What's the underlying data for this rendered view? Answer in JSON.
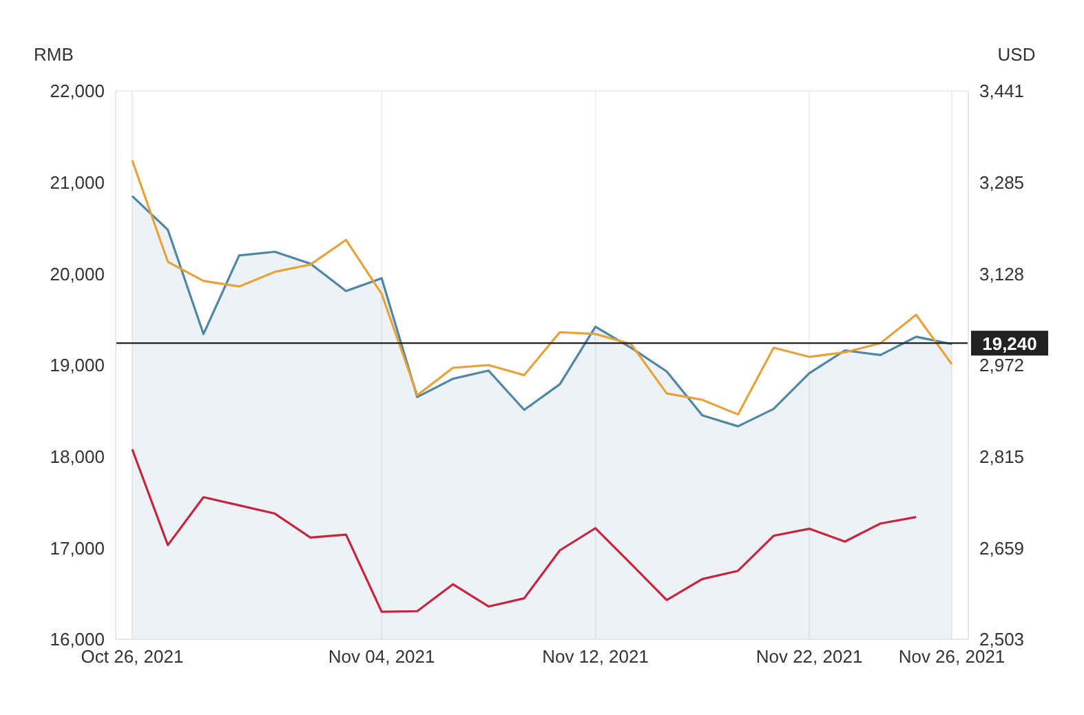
{
  "chart_data": {
    "type": "line",
    "ylabel": "RMB",
    "y2label": "USD",
    "categories": [
      "Oct 26, 2021",
      null,
      null,
      null,
      null,
      null,
      null,
      "Nov 04, 2021",
      null,
      null,
      null,
      null,
      null,
      "Nov 12, 2021",
      null,
      null,
      null,
      null,
      null,
      "Nov 22, 2021",
      null,
      null,
      null,
      "Nov 26, 2021"
    ],
    "series": [
      {
        "type": "area",
        "color": "#4e86a6",
        "values": [
          20850,
          20480,
          19340,
          20200,
          20240,
          20110,
          19810,
          19950,
          18650,
          18850,
          18940,
          18510,
          18790,
          19420,
          19190,
          18930,
          18450,
          18330,
          18520,
          18910,
          19160,
          19110,
          19310,
          19230
        ]
      },
      {
        "color": "#e8a23a",
        "values": [
          21240,
          20130,
          19920,
          19860,
          20020,
          20100,
          20370,
          19780,
          18670,
          18970,
          19000,
          18890,
          19360,
          19340,
          19230,
          18690,
          18620,
          18460,
          19190,
          19090,
          19140,
          19240,
          19550,
          19010
        ]
      },
      {
        "color": "#c8243c",
        "axis": "y2",
        "values": [
          2828,
          2664,
          2746,
          2732,
          2718,
          2677,
          2682,
          2550,
          2551,
          2597,
          2559,
          2573,
          2655,
          2693,
          2632,
          2570,
          2606,
          2620,
          2680,
          2692,
          2670,
          2701,
          2712,
          null
        ]
      }
    ],
    "ylim": [
      16000,
      22000
    ],
    "yticks": [
      {
        "value": 16000,
        "label": "16,000"
      },
      {
        "value": 17000,
        "label": "17,000"
      },
      {
        "value": 18000,
        "label": "18,000"
      },
      {
        "value": 19000,
        "label": "19,000"
      },
      {
        "value": 20000,
        "label": "20,000"
      },
      {
        "value": 21000,
        "label": "21,000"
      },
      {
        "value": 22000,
        "label": "22,000"
      }
    ],
    "y2lim": [
      2503,
      3441
    ],
    "y2ticks": [
      {
        "value": 2503,
        "label": "2,503"
      },
      {
        "value": 2659,
        "label": "2,659"
      },
      {
        "value": 2815,
        "label": "2,815"
      },
      {
        "value": 2972,
        "label": "2,972"
      },
      {
        "value": 3128,
        "label": "3,128"
      },
      {
        "value": 3285,
        "label": "3,285"
      },
      {
        "value": 3441,
        "label": "3,441"
      }
    ],
    "ref_lines": [
      {
        "axis": "y",
        "value": 19240,
        "label": "19,240",
        "color": "#222222"
      }
    ],
    "grid": true,
    "marker": "none",
    "line_style": "solid"
  }
}
